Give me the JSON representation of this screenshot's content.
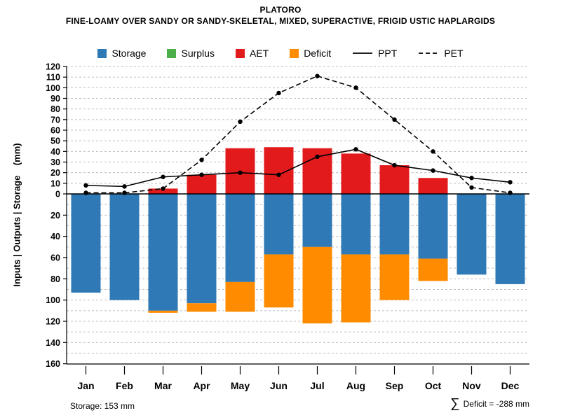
{
  "header": {
    "title": "PLATORO",
    "subtitle": "FINE-LOAMY OVER SANDY OR SANDY-SKELETAL, MIXED, SUPERACTIVE, FRIGID USTIC HAPLARGIDS"
  },
  "colors": {
    "storage": "#2e79b6",
    "surplus": "#4daf4a",
    "aet": "#e31a1c",
    "deficit": "#ff8c00",
    "line": "#000000",
    "grid": "#bdbdbd"
  },
  "legend": {
    "items": [
      {
        "label": "Storage",
        "type": "swatch",
        "color_key": "storage"
      },
      {
        "label": "Surplus",
        "type": "swatch",
        "color_key": "surplus"
      },
      {
        "label": "AET",
        "type": "swatch",
        "color_key": "aet"
      },
      {
        "label": "Deficit",
        "type": "swatch",
        "color_key": "deficit"
      },
      {
        "label": "PPT",
        "type": "solid-line"
      },
      {
        "label": "PET",
        "type": "dashed-line"
      }
    ]
  },
  "y_axis": {
    "label": "Inputs | Outputs | Storage    (mm)",
    "upper_ticks": [
      0,
      10,
      20,
      30,
      40,
      50,
      60,
      70,
      80,
      90,
      100,
      110,
      120
    ],
    "lower_ticks": [
      20,
      40,
      60,
      80,
      100,
      120,
      140,
      160
    ]
  },
  "footer": {
    "storage_note": "Storage: 153 mm",
    "deficit_symbol": "∑",
    "deficit_text": "Deficit = -288 mm"
  },
  "chart_data": {
    "type": "bar",
    "title": "PLATORO",
    "subtitle": "FINE-LOAMY OVER SANDY OR SANDY-SKELETAL, MIXED, SUPERACTIVE, FRIGID USTIC HAPLARGIDS",
    "ylabel": "Inputs | Outputs | Storage (mm)",
    "ylim": [
      -160,
      120
    ],
    "grid": true,
    "legend_position": "top",
    "categories": [
      "Jan",
      "Feb",
      "Mar",
      "Apr",
      "May",
      "Jun",
      "Jul",
      "Aug",
      "Sep",
      "Oct",
      "Nov",
      "Dec"
    ],
    "series": [
      {
        "name": "Storage",
        "direction": "down",
        "color_key": "storage",
        "values": [
          93,
          100,
          110,
          103,
          83,
          57,
          50,
          57,
          57,
          61,
          76,
          85
        ]
      },
      {
        "name": "Surplus",
        "direction": "up",
        "color_key": "surplus",
        "values": [
          0,
          0,
          0,
          0,
          0,
          0,
          0,
          0,
          0,
          0,
          0,
          0
        ]
      },
      {
        "name": "AET",
        "direction": "up",
        "color_key": "aet",
        "values": [
          0,
          0,
          5,
          18,
          43,
          44,
          43,
          38,
          27,
          15,
          0,
          0
        ]
      },
      {
        "name": "Deficit",
        "direction": "down",
        "color_key": "deficit",
        "values": [
          0,
          0,
          2,
          8,
          28,
          50,
          72,
          64,
          43,
          21,
          0,
          0
        ]
      }
    ],
    "lines": [
      {
        "name": "PPT",
        "style": "solid",
        "values": [
          8,
          7,
          16,
          18,
          20,
          18,
          35,
          42,
          27,
          22,
          15,
          11
        ]
      },
      {
        "name": "PET",
        "style": "dashed",
        "values": [
          1,
          1,
          5,
          32,
          68,
          95,
          111,
          100,
          70,
          40,
          6,
          1
        ]
      }
    ],
    "annotations": {
      "storage_capacity_mm": 153,
      "total_deficit_mm": -288
    }
  }
}
